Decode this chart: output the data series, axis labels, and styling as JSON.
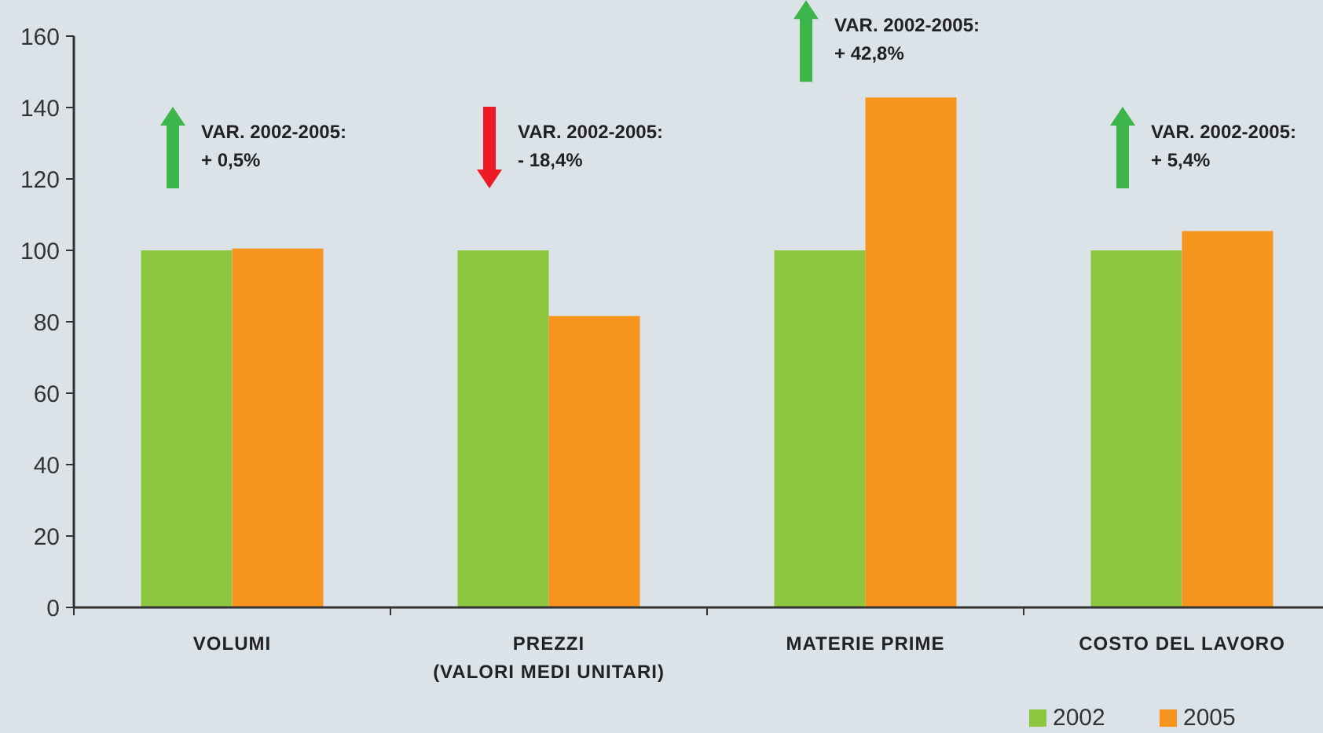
{
  "chart_data": {
    "type": "bar",
    "categories": [
      "VOLUMI",
      "PREZZI\n(VALORI MEDI UNITARI)",
      "MATERIE PRIME",
      "COSTO DEL LAVORO"
    ],
    "series": [
      {
        "name": "2002",
        "color": "#8dc63f",
        "values": [
          100,
          100,
          100,
          100
        ]
      },
      {
        "name": "2005",
        "color": "#f7941d",
        "values": [
          100.5,
          81.6,
          142.8,
          105.4
        ]
      }
    ],
    "ylim": [
      0,
      160
    ],
    "yticks": [
      0,
      20,
      40,
      60,
      80,
      100,
      120,
      140,
      160
    ],
    "grid": false,
    "legend": "bottom right",
    "annotations": [
      "VAR. 2002-2005:\n+ 0,5%",
      "VAR. 2002-2005:\n- 18,4%",
      "VAR. 2002-2005:\n+ 42,8%",
      "VAR. 2002-2005:\n+ 5,4%"
    ]
  }
}
